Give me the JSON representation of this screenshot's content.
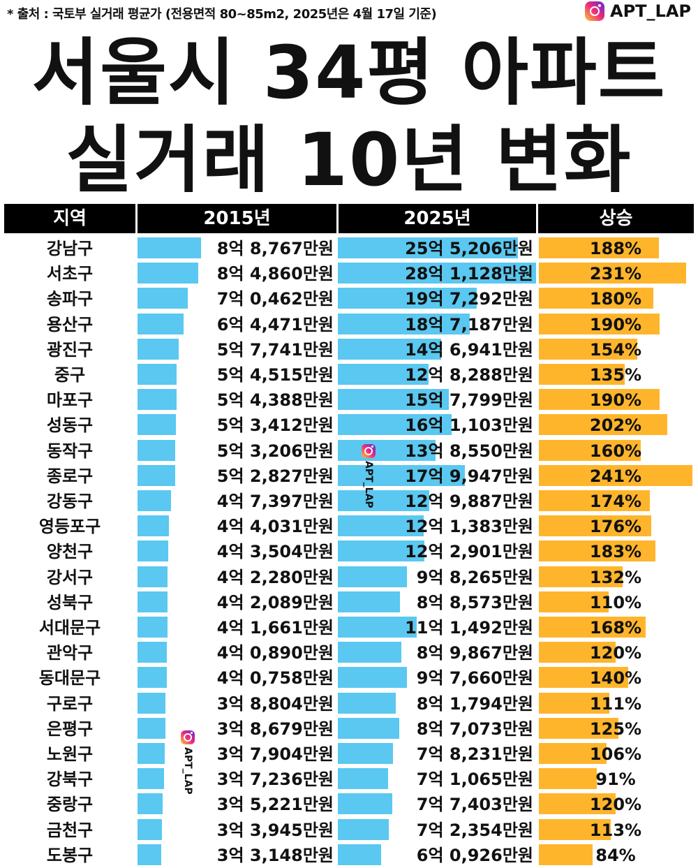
{
  "header": {
    "source": "* 출처 : 국토부 실거래 평균가 (전용면적 80~85m2, 2025년은 4월 17일 기준)",
    "brand": "APT_LAP",
    "title_line1": "서울시 34평 아파트",
    "title_line2": "실거래 10년 변화"
  },
  "watermark": {
    "text": "APT_LAP"
  },
  "colors": {
    "bar_2015": "#5ac8f0",
    "bar_2025": "#5ac8f0",
    "bar_rise": "#ffb52b",
    "header_bg": "#000000"
  },
  "chart_data": {
    "type": "table",
    "title": "서울시 34평 아파트 실거래 10년 변화",
    "columns": [
      "지역",
      "2015년",
      "2025년",
      "상승"
    ],
    "unit": "만원",
    "rows": [
      {
        "region": "강남구",
        "v2015": 88767,
        "l2015": "8억 8,767만원",
        "v2025": 255206,
        "l2025": "25억 5,206만원",
        "rise": 188,
        "lrise": "188%"
      },
      {
        "region": "서초구",
        "v2015": 84860,
        "l2015": "8억 4,860만원",
        "v2025": 281128,
        "l2025": "28억 1,128만원",
        "rise": 231,
        "lrise": "231%"
      },
      {
        "region": "송파구",
        "v2015": 70462,
        "l2015": "7억 0,462만원",
        "v2025": 197292,
        "l2025": "19억 7,292만원",
        "rise": 180,
        "lrise": "180%"
      },
      {
        "region": "용산구",
        "v2015": 64471,
        "l2015": "6억 4,471만원",
        "v2025": 187187,
        "l2025": "18억 7,187만원",
        "rise": 190,
        "lrise": "190%"
      },
      {
        "region": "광진구",
        "v2015": 57741,
        "l2015": "5억 7,741만원",
        "v2025": 146941,
        "l2025": "14억 6,941만원",
        "rise": 154,
        "lrise": "154%"
      },
      {
        "region": "중구",
        "v2015": 54515,
        "l2015": "5억 4,515만원",
        "v2025": 128288,
        "l2025": "12억 8,288만원",
        "rise": 135,
        "lrise": "135%"
      },
      {
        "region": "마포구",
        "v2015": 54388,
        "l2015": "5억 4,388만원",
        "v2025": 157799,
        "l2025": "15억 7,799만원",
        "rise": 190,
        "lrise": "190%"
      },
      {
        "region": "성동구",
        "v2015": 53412,
        "l2015": "5억 3,412만원",
        "v2025": 161103,
        "l2025": "16억 1,103만원",
        "rise": 202,
        "lrise": "202%"
      },
      {
        "region": "동작구",
        "v2015": 53206,
        "l2015": "5억 3,206만원",
        "v2025": 138550,
        "l2025": "13억 8,550만원",
        "rise": 160,
        "lrise": "160%"
      },
      {
        "region": "종로구",
        "v2015": 52827,
        "l2015": "5억 2,827만원",
        "v2025": 179947,
        "l2025": "17억 9,947만원",
        "rise": 241,
        "lrise": "241%"
      },
      {
        "region": "강동구",
        "v2015": 47397,
        "l2015": "4억 7,397만원",
        "v2025": 129887,
        "l2025": "12억 9,887만원",
        "rise": 174,
        "lrise": "174%"
      },
      {
        "region": "영등포구",
        "v2015": 44031,
        "l2015": "4억 4,031만원",
        "v2025": 121383,
        "l2025": "12억 1,383만원",
        "rise": 176,
        "lrise": "176%"
      },
      {
        "region": "양천구",
        "v2015": 43504,
        "l2015": "4억 3,504만원",
        "v2025": 122901,
        "l2025": "12억 2,901만원",
        "rise": 183,
        "lrise": "183%"
      },
      {
        "region": "강서구",
        "v2015": 42280,
        "l2015": "4억 2,280만원",
        "v2025": 98265,
        "l2025": "9억 8,265만원",
        "rise": 132,
        "lrise": "132%"
      },
      {
        "region": "성북구",
        "v2015": 42089,
        "l2015": "4억 2,089만원",
        "v2025": 88573,
        "l2025": "8억 8,573만원",
        "rise": 110,
        "lrise": "110%"
      },
      {
        "region": "서대문구",
        "v2015": 41661,
        "l2015": "4억 1,661만원",
        "v2025": 111492,
        "l2025": "11억 1,492만원",
        "rise": 168,
        "lrise": "168%"
      },
      {
        "region": "관악구",
        "v2015": 40890,
        "l2015": "4억 0,890만원",
        "v2025": 89867,
        "l2025": "8억 9,867만원",
        "rise": 120,
        "lrise": "120%"
      },
      {
        "region": "동대문구",
        "v2015": 40758,
        "l2015": "4억 0,758만원",
        "v2025": 97660,
        "l2025": "9억 7,660만원",
        "rise": 140,
        "lrise": "140%"
      },
      {
        "region": "구로구",
        "v2015": 38804,
        "l2015": "3억 8,804만원",
        "v2025": 81794,
        "l2025": "8억 1,794만원",
        "rise": 111,
        "lrise": "111%"
      },
      {
        "region": "은평구",
        "v2015": 38679,
        "l2015": "3억 8,679만원",
        "v2025": 87073,
        "l2025": "8억 7,073만원",
        "rise": 125,
        "lrise": "125%"
      },
      {
        "region": "노원구",
        "v2015": 37904,
        "l2015": "3억 7,904만원",
        "v2025": 78231,
        "l2025": "7억 8,231만원",
        "rise": 106,
        "lrise": "106%"
      },
      {
        "region": "강북구",
        "v2015": 37236,
        "l2015": "3억 7,236만원",
        "v2025": 71065,
        "l2025": "7억 1,065만원",
        "rise": 91,
        "lrise": "91%"
      },
      {
        "region": "중랑구",
        "v2015": 35221,
        "l2015": "3억 5,221만원",
        "v2025": 77403,
        "l2025": "7억 7,403만원",
        "rise": 120,
        "lrise": "120%"
      },
      {
        "region": "금천구",
        "v2015": 33945,
        "l2015": "3억 3,945만원",
        "v2025": 72354,
        "l2025": "7억 2,354만원",
        "rise": 113,
        "lrise": "113%"
      },
      {
        "region": "도봉구",
        "v2015": 33148,
        "l2015": "3억 3,148만원",
        "v2025": 60926,
        "l2025": "6억 0,926만원",
        "rise": 84,
        "lrise": "84%"
      }
    ]
  }
}
